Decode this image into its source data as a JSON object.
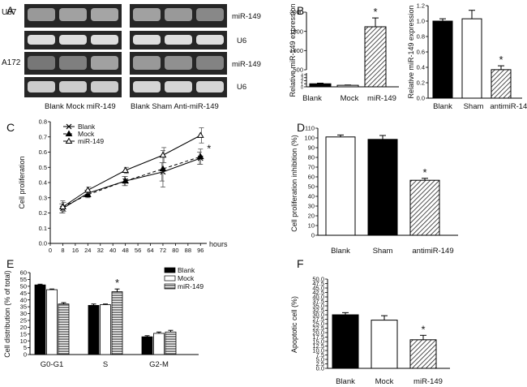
{
  "panel_labels": [
    "A",
    "B",
    "C",
    "D",
    "E",
    "F"
  ],
  "panel_a": {
    "cell_lines": [
      "U87",
      "A172"
    ],
    "row_labels": [
      "miR-149",
      "U6",
      "miR-149",
      "U6"
    ],
    "bottom_left": "Blank Mock miR-149",
    "bottom_right": "Blank Sham Anti-miR-149"
  },
  "chart_data": [
    {
      "id": "B1",
      "type": "bar",
      "ylabel": "Relative miR-149 expression",
      "categories": [
        "Blank",
        "Mock",
        "miR-149"
      ],
      "values": [
        1.0,
        0.5,
        1620
      ],
      "errors": [
        0.2,
        0.1,
        230
      ],
      "yticks": [
        "0",
        "1",
        "2",
        "3",
        "4",
        "500",
        "1000",
        "1500",
        "2000"
      ],
      "fills": [
        "solid",
        "open",
        "hatched"
      ],
      "star": [
        false,
        false,
        true
      ]
    },
    {
      "id": "B2",
      "type": "bar",
      "ylabel": "Relative miR-149 expression",
      "categories": [
        "Blank",
        "Sham",
        "antimiR-149"
      ],
      "values": [
        1.0,
        1.03,
        0.37
      ],
      "errors": [
        0.03,
        0.11,
        0.05
      ],
      "ylim": [
        0,
        1.2
      ],
      "yticks": [
        "0.0",
        "0.2",
        "0.4",
        "0.6",
        "0.8",
        "1.0",
        "1.2"
      ],
      "fills": [
        "solid",
        "open",
        "hatched"
      ],
      "star": [
        false,
        false,
        true
      ]
    },
    {
      "id": "C",
      "type": "line",
      "ylabel": "Cell proliferation",
      "xlabel": "hours",
      "x": [
        8,
        24,
        48,
        72,
        96
      ],
      "xticks": [
        "0",
        "8",
        "16",
        "24",
        "32",
        "40",
        "48",
        "56",
        "64",
        "72",
        "80",
        "88",
        "96"
      ],
      "yticks": [
        "0.0",
        "0.1",
        "0.2",
        "0.3",
        "0.4",
        "0.5",
        "0.6",
        "0.7",
        "0.8"
      ],
      "ylim": [
        0,
        0.8
      ],
      "xlim": [
        0,
        100
      ],
      "series": [
        {
          "name": "Blank",
          "values": [
            0.23,
            0.33,
            0.41,
            0.47,
            0.56
          ],
          "errors": [
            0.03,
            0.02,
            0.03,
            0.06,
            0.04
          ]
        },
        {
          "name": "Mock",
          "values": [
            0.24,
            0.32,
            0.41,
            0.49,
            0.57
          ],
          "errors": [
            0.04,
            0.02,
            0.03,
            0.12,
            0.05
          ]
        },
        {
          "name": "miR-149",
          "values": [
            0.24,
            0.35,
            0.48,
            0.58,
            0.71
          ],
          "errors": [
            0.03,
            0.02,
            0.02,
            0.05,
            0.05
          ]
        }
      ],
      "star": "*"
    },
    {
      "id": "D",
      "type": "bar",
      "ylabel": "Cell proliferation inhibition (%)",
      "categories": [
        "Blank",
        "Sham",
        "antimiR-149"
      ],
      "values": [
        101,
        98.5,
        56.5
      ],
      "errors": [
        2,
        4,
        2
      ],
      "ylim": [
        0,
        110
      ],
      "yticks": [
        "0",
        "10",
        "20",
        "30",
        "40",
        "50",
        "60",
        "70",
        "80",
        "90",
        "100",
        "110"
      ],
      "fills": [
        "open",
        "solid",
        "hatched"
      ],
      "star": [
        false,
        false,
        true
      ]
    },
    {
      "id": "E",
      "type": "bar",
      "ylabel": "Cell distribution (% of total)",
      "categories": [
        "G0-G1",
        "S",
        "G2-M"
      ],
      "series": [
        {
          "name": "Blank",
          "values": [
            51,
            36,
            13
          ],
          "errors": [
            0.5,
            1,
            0.8
          ]
        },
        {
          "name": "Mock",
          "values": [
            47.5,
            36.5,
            15.5
          ],
          "errors": [
            0.5,
            0.5,
            1
          ]
        },
        {
          "name": "miR-149",
          "values": [
            37,
            46,
            16.5
          ],
          "errors": [
            1,
            2,
            1.2
          ]
        }
      ],
      "ylim": [
        0,
        60
      ],
      "yticks": [
        "0",
        "5",
        "10",
        "15",
        "20",
        "25",
        "30",
        "35",
        "40",
        "45",
        "50",
        "55",
        "60"
      ],
      "star_on": {
        "category": "S",
        "series": "miR-149"
      }
    },
    {
      "id": "F",
      "type": "bar",
      "ylabel": "Apoptotic cell (%)",
      "categories": [
        "Blank",
        "Mock",
        "miR-149"
      ],
      "values": [
        30,
        27,
        16
      ],
      "errors": [
        1.2,
        2.5,
        2.5
      ],
      "ylim": [
        0,
        50
      ],
      "yticks": [
        "0.0",
        "2.5",
        "5.0",
        "7.5",
        "10.0",
        "12.5",
        "15.0",
        "17.5",
        "20.0",
        "22.5",
        "25.0",
        "27.5",
        "30.0",
        "32.5",
        "35.0",
        "37.5",
        "40.0",
        "42.5",
        "45.0",
        "47.5",
        "50.0"
      ],
      "fills": [
        "solid",
        "open",
        "hatched"
      ],
      "star": [
        false,
        false,
        true
      ]
    }
  ]
}
